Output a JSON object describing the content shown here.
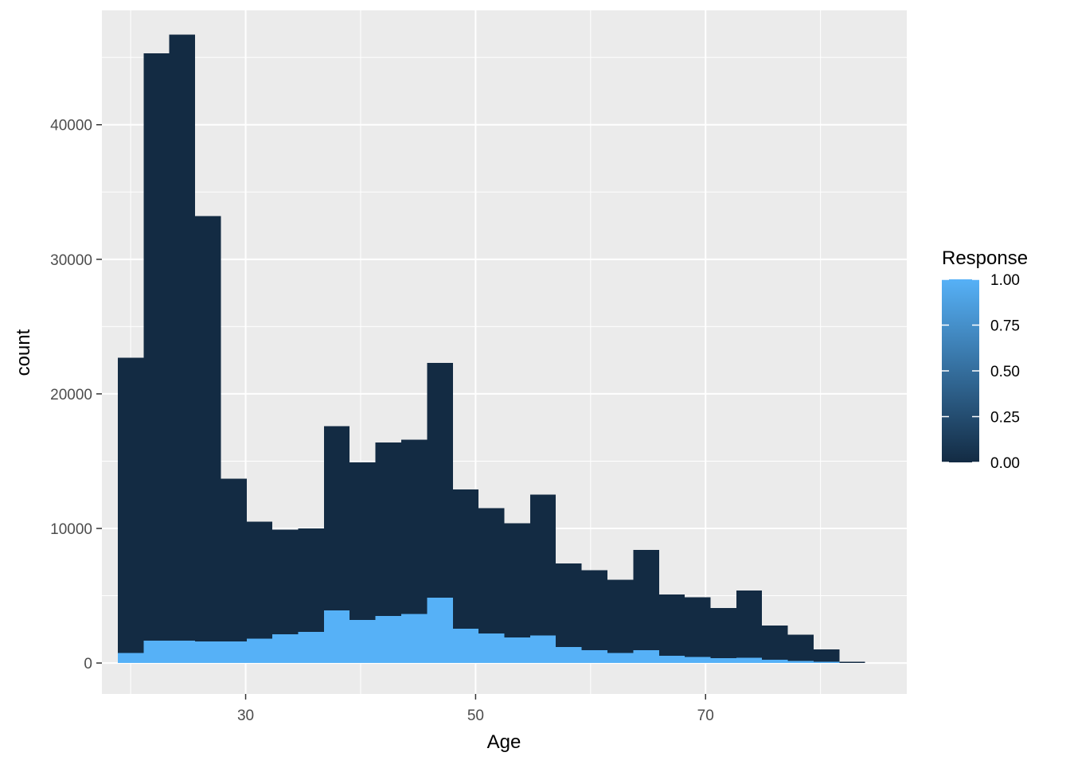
{
  "chart_data": {
    "type": "bar",
    "subtype": "stacked-histogram",
    "xlabel": "Age",
    "ylabel": "count",
    "xlim": [
      17.5,
      87.5
    ],
    "ylim": [
      -2300,
      48500
    ],
    "x_ticks": [
      30,
      50,
      70
    ],
    "x_tick_labels": [
      "30",
      "50",
      "70"
    ],
    "y_ticks": [
      0,
      10000,
      20000,
      30000,
      40000
    ],
    "y_tick_labels": [
      "0",
      "10000",
      "20000",
      "30000",
      "40000"
    ],
    "x_minor_gridlines": [
      20,
      40,
      60,
      80
    ],
    "y_minor_gridlines": [
      5000,
      15000,
      25000,
      35000,
      45000
    ],
    "grid": true,
    "legend_position": "right",
    "bin_width": 2.24,
    "bins": [
      {
        "x": 20.0,
        "total": 22700,
        "response": 750
      },
      {
        "x": 22.24,
        "total": 45300,
        "response": 1650
      },
      {
        "x": 24.48,
        "total": 46700,
        "response": 1650
      },
      {
        "x": 26.72,
        "total": 33200,
        "response": 1600
      },
      {
        "x": 28.97,
        "total": 13700,
        "response": 1600
      },
      {
        "x": 31.21,
        "total": 10500,
        "response": 1800
      },
      {
        "x": 33.45,
        "total": 9900,
        "response": 2150
      },
      {
        "x": 35.69,
        "total": 10000,
        "response": 2300
      },
      {
        "x": 37.93,
        "total": 17600,
        "response": 3900
      },
      {
        "x": 40.17,
        "total": 14900,
        "response": 3200
      },
      {
        "x": 42.41,
        "total": 16400,
        "response": 3500
      },
      {
        "x": 44.66,
        "total": 16600,
        "response": 3650
      },
      {
        "x": 46.9,
        "total": 22300,
        "response": 4850
      },
      {
        "x": 49.14,
        "total": 12900,
        "response": 2550
      },
      {
        "x": 51.38,
        "total": 11500,
        "response": 2200
      },
      {
        "x": 53.62,
        "total": 10400,
        "response": 1900
      },
      {
        "x": 55.86,
        "total": 12500,
        "response": 2050
      },
      {
        "x": 58.1,
        "total": 7400,
        "response": 1200
      },
      {
        "x": 60.34,
        "total": 6900,
        "response": 950
      },
      {
        "x": 62.59,
        "total": 6200,
        "response": 750
      },
      {
        "x": 64.83,
        "total": 8400,
        "response": 950
      },
      {
        "x": 67.07,
        "total": 5100,
        "response": 550
      },
      {
        "x": 69.31,
        "total": 4900,
        "response": 450
      },
      {
        "x": 71.55,
        "total": 4100,
        "response": 350
      },
      {
        "x": 73.79,
        "total": 5400,
        "response": 400
      },
      {
        "x": 76.03,
        "total": 2800,
        "response": 250
      },
      {
        "x": 78.28,
        "total": 2100,
        "response": 150
      },
      {
        "x": 80.52,
        "total": 1000,
        "response": 100
      },
      {
        "x": 82.76,
        "total": 100,
        "response": 0
      },
      {
        "x": 85.0,
        "total": 0,
        "response": 0
      }
    ],
    "legend": {
      "title": "Response",
      "type": "colorbar",
      "labels": [
        "1.00",
        "0.75",
        "0.50",
        "0.25",
        "0.00"
      ],
      "values": [
        1.0,
        0.75,
        0.5,
        0.25,
        0.0
      ],
      "color_low": "#132B43",
      "color_high": "#56B1F7"
    },
    "colors": {
      "panel_background": "#EBEBEB",
      "gridline": "#FFFFFF",
      "response_0": "#132B43",
      "response_1": "#56B1F7"
    }
  }
}
